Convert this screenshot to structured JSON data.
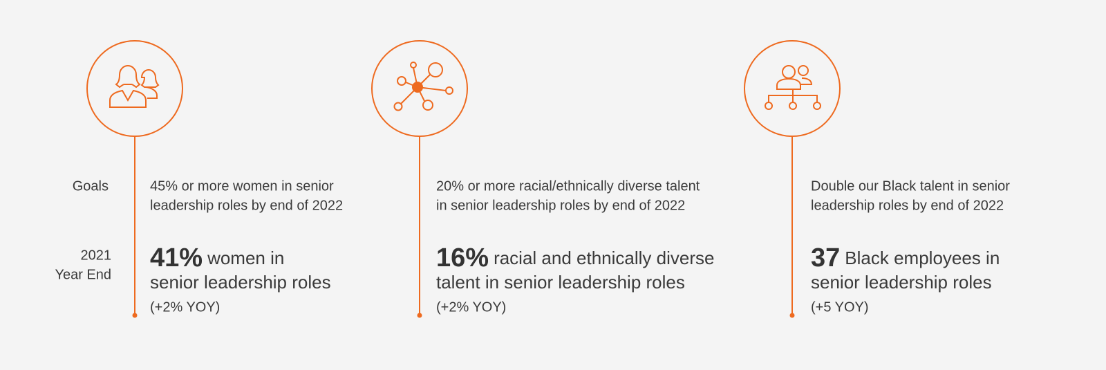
{
  "row_labels": {
    "goals": "Goals",
    "year_end": [
      "2021",
      "Year End"
    ]
  },
  "columns": [
    {
      "goal": [
        "45% or more women in senior",
        "leadership roles by end of 2022"
      ],
      "stat": "41%",
      "result": [
        "women in",
        "senior leadership roles"
      ],
      "change": "(+2% YOY)"
    },
    {
      "goal": [
        "20% or more racial/ethnically diverse talent",
        "in senior leadership roles by end of 2022"
      ],
      "stat": "16%",
      "result": [
        "racial and ethnically diverse",
        "talent in senior leadership roles"
      ],
      "change": "(+2% YOY)"
    },
    {
      "goal": [
        "Double our Black talent in senior",
        "leadership roles by end of 2022"
      ],
      "stat": "37",
      "result": [
        "Black employees in",
        "senior leadership roles"
      ],
      "change": "(+5 YOY)"
    }
  ]
}
